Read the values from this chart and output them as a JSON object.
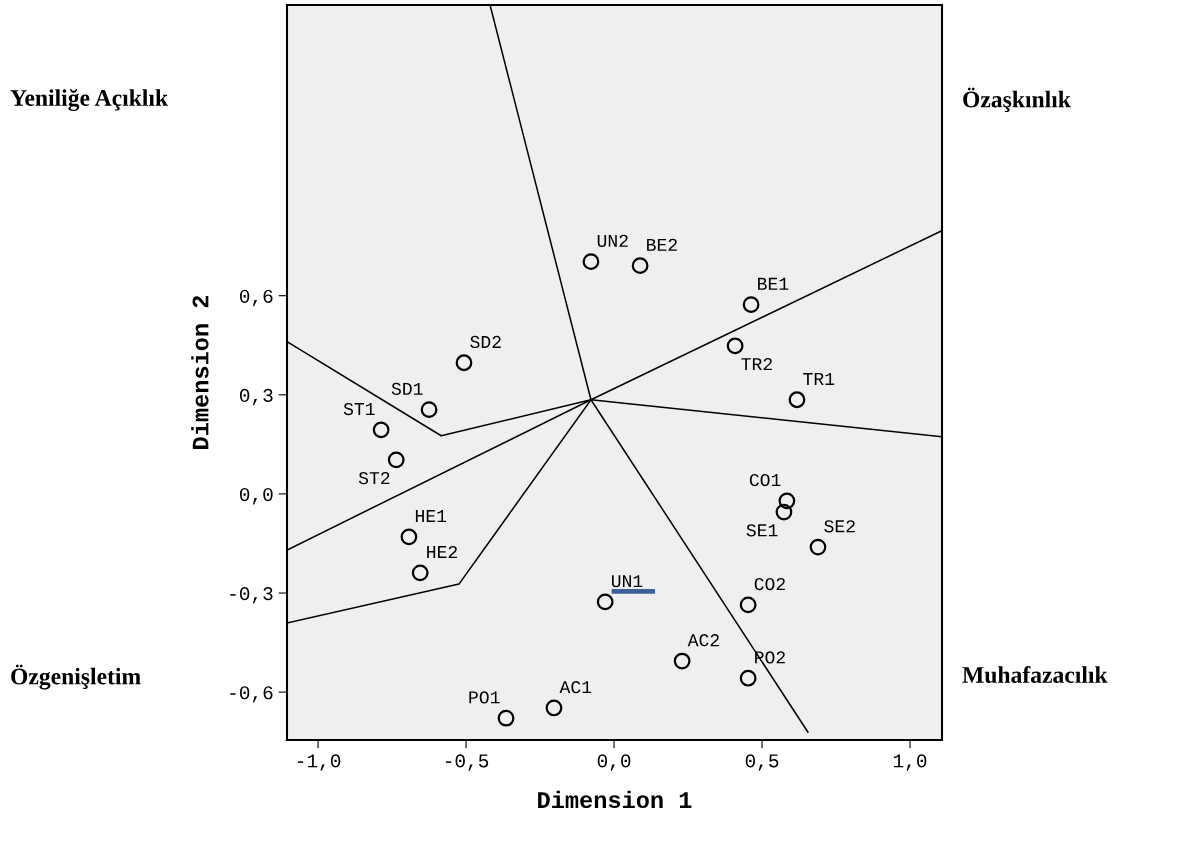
{
  "chart_data": {
    "type": "scatter",
    "xlabel": "Dimension 1",
    "ylabel": "Dimension 2",
    "xlim": [
      -1.105,
      1.108
    ],
    "ylim": [
      -0.745,
      1.48
    ],
    "xticks": [
      {
        "value": -1.0,
        "label": "-1,0"
      },
      {
        "value": -0.5,
        "label": "-0,5"
      },
      {
        "value": 0.0,
        "label": "0,0"
      },
      {
        "value": 0.5,
        "label": "0,5"
      },
      {
        "value": 1.0,
        "label": "1,0"
      }
    ],
    "yticks": [
      {
        "value": -0.6,
        "label": "-0,6"
      },
      {
        "value": -0.3,
        "label": "-0,3"
      },
      {
        "value": 0.0,
        "label": "0,0"
      },
      {
        "value": 0.3,
        "label": "0,3"
      },
      {
        "value": 0.6,
        "label": "0,6"
      }
    ],
    "grid": false,
    "annotations": [
      "Yeniliğe Açıklık",
      "Özaşkınlık",
      "Özgenişletim",
      "Muhafazacılık"
    ],
    "series": [
      {
        "color": "#000000",
        "marker": "circle",
        "x": [
          -0.078,
          0.088,
          0.463,
          0.409,
          0.618,
          -0.507,
          -0.625,
          -0.787,
          -0.736,
          -0.693,
          -0.655,
          0.584,
          0.574,
          0.689,
          0.453,
          -0.03,
          0.23,
          0.453,
          -0.203,
          -0.365
        ],
        "values": [
          0.703,
          0.691,
          0.573,
          0.448,
          0.285,
          0.397,
          0.255,
          0.194,
          0.103,
          -0.13,
          -0.239,
          -0.021,
          -0.055,
          -0.161,
          -0.336,
          -0.327,
          -0.506,
          -0.558,
          -0.648,
          -0.679
        ],
        "value_labels": [
          "UN2",
          "BE2",
          "BE1",
          "TR2",
          "TR1",
          "SD2",
          "SD1",
          "ST1",
          "ST2",
          "HE1",
          "HE2",
          "CO1",
          "SE1",
          "SE2",
          "CO2",
          "UN1",
          "AC2",
          "PO2",
          "AC1",
          "PO1"
        ]
      },
      {
        "type": "line",
        "color": "#000000",
        "x": [
          -0.419,
          -0.078,
          0.655
        ],
        "values": [
          1.48,
          0.285,
          -0.721
        ]
      },
      {
        "type": "line",
        "color": "#000000",
        "x": [
          1.108,
          -0.078,
          -1.105
        ],
        "values": [
          0.797,
          0.285,
          -0.17
        ]
      },
      {
        "type": "line",
        "color": "#000000",
        "x": [
          1.108,
          -0.078,
          -0.584,
          -1.105
        ],
        "values": [
          0.173,
          0.285,
          0.176,
          0.461
        ]
      },
      {
        "type": "line",
        "color": "#000000",
        "x": [
          -0.078,
          -0.524,
          -1.105
        ],
        "values": [
          0.285,
          -0.273,
          -0.391
        ]
      },
      {
        "type": "line",
        "color": "#3a5f9a",
        "x": [
          0.0,
          0.13
        ],
        "values": [
          -0.295,
          -0.295
        ]
      }
    ]
  }
}
